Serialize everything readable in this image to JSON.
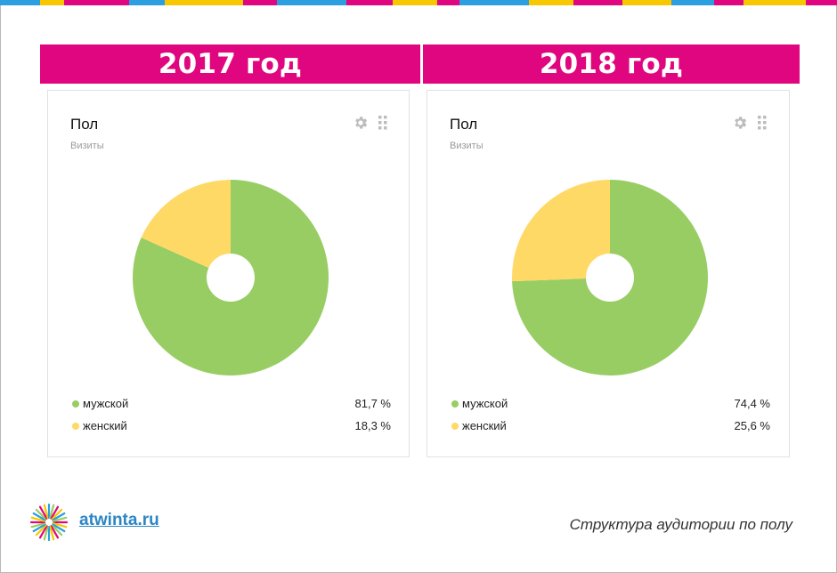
{
  "colors": {
    "banner": "#e0067f",
    "male": "#98cd63",
    "female": "#ffd966",
    "stripe": [
      "#e0067f",
      "#f7c800",
      "#2b9fe0"
    ]
  },
  "charts": [
    {
      "year_label": "2017 год",
      "title": "Пол",
      "subtitle": "Визиты",
      "legend": [
        {
          "label": "мужской",
          "value_text": "81,7 %"
        },
        {
          "label": "женский",
          "value_text": "18,3 %"
        }
      ]
    },
    {
      "year_label": "2018 год",
      "title": "Пол",
      "subtitle": "Визиты",
      "legend": [
        {
          "label": "мужской",
          "value_text": "74,4 %"
        },
        {
          "label": "женский",
          "value_text": "25,6 %"
        }
      ]
    }
  ],
  "chart_data": [
    {
      "type": "pie",
      "title": "Пол",
      "subtitle": "Визиты",
      "categories": [
        "мужской",
        "женский"
      ],
      "values": [
        81.7,
        18.3
      ],
      "legend_position": "bottom"
    },
    {
      "type": "pie",
      "title": "Пол",
      "subtitle": "Визиты",
      "categories": [
        "мужской",
        "женский"
      ],
      "values": [
        74.4,
        25.6
      ],
      "legend_position": "bottom"
    }
  ],
  "footer": {
    "logo_text": "atwinta.ru",
    "caption": "Структура аудитории по полу"
  },
  "icons": [
    "gear-icon",
    "drag-grip-icon",
    "atwinta-logo-icon"
  ]
}
